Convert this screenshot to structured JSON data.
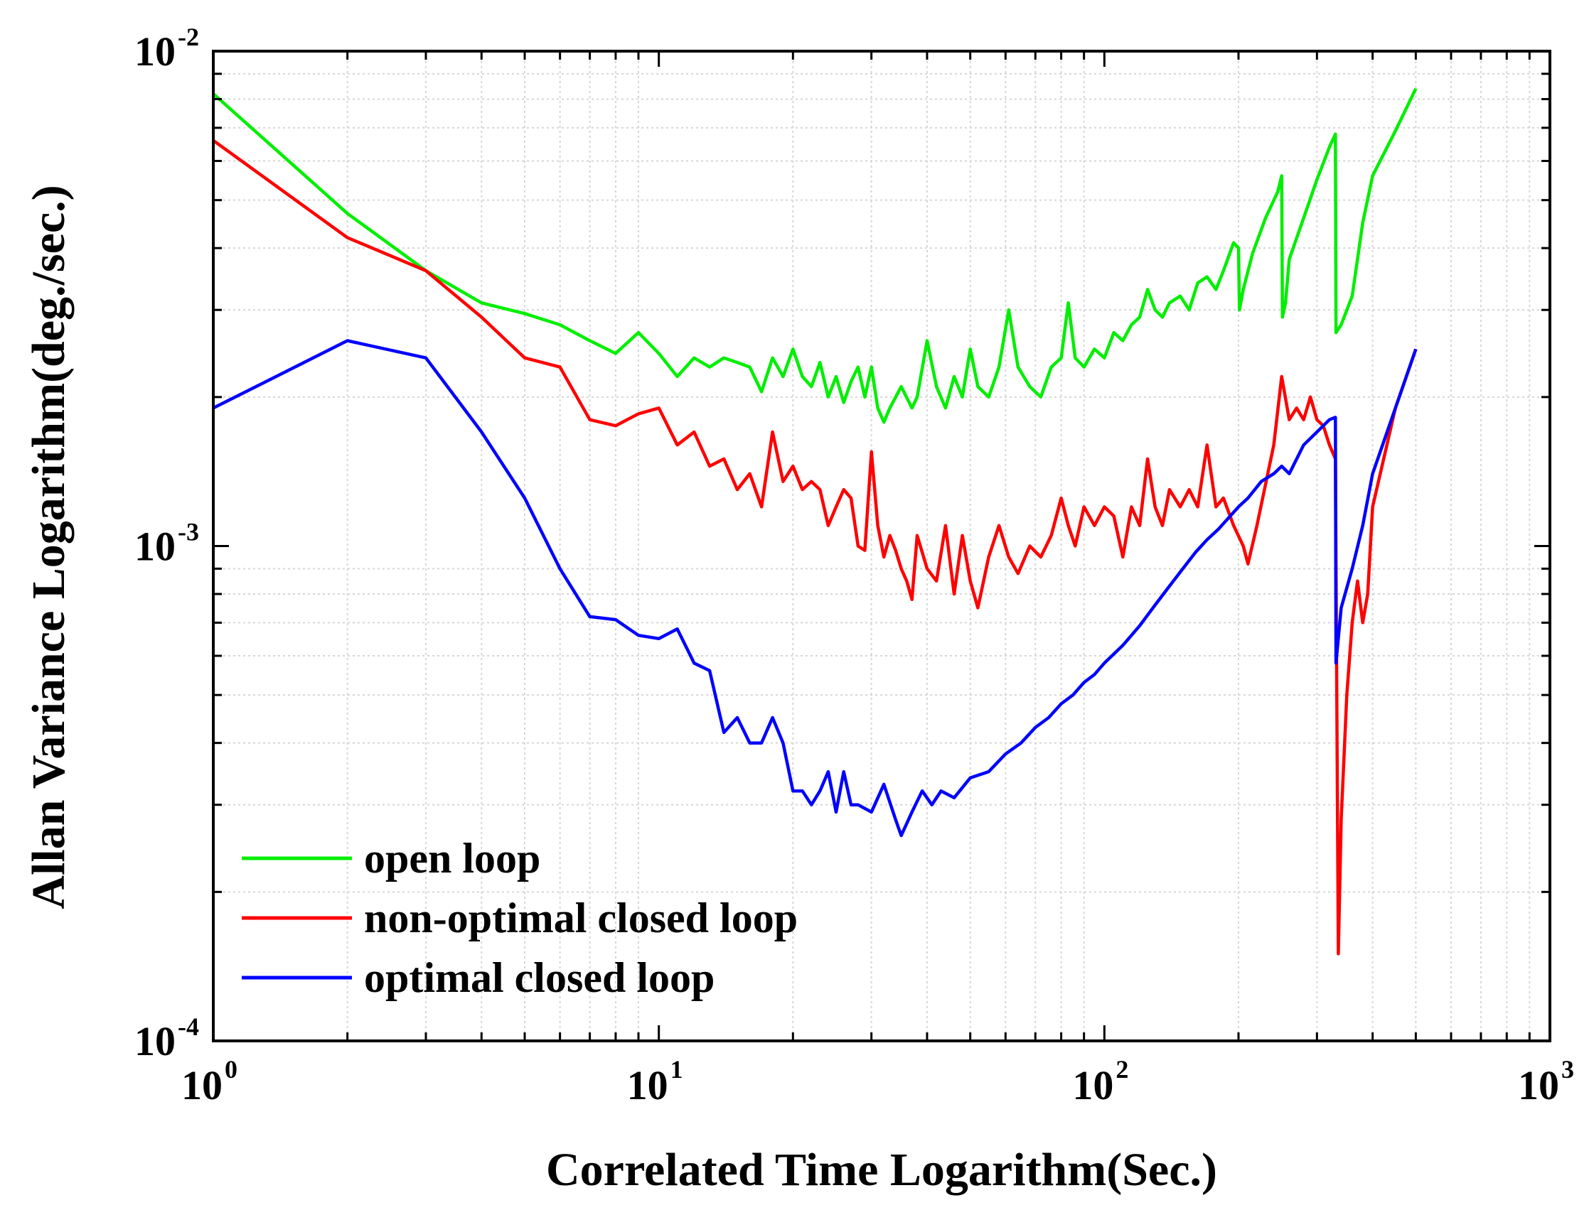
{
  "chart_data": {
    "type": "line",
    "title": "",
    "xlabel": "Correlated Time Logarithm(Sec.)",
    "ylabel": "Allan Variance Logarithm(deg./sec.)",
    "xscale": "log",
    "yscale": "log",
    "xlim": [
      1,
      1000
    ],
    "ylim": [
      0.0001,
      0.01
    ],
    "grid": true,
    "legend_position": "bottom-left",
    "x_ticks": [
      {
        "base": "10",
        "exp": "0",
        "value": 1
      },
      {
        "base": "10",
        "exp": "1",
        "value": 10
      },
      {
        "base": "10",
        "exp": "2",
        "value": 100
      },
      {
        "base": "10",
        "exp": "3",
        "value": 1000
      }
    ],
    "y_ticks": [
      {
        "base": "10",
        "exp": "-4",
        "value": 0.0001
      },
      {
        "base": "10",
        "exp": "-3",
        "value": 0.001
      },
      {
        "base": "10",
        "exp": "-2",
        "value": 0.01
      }
    ],
    "series": [
      {
        "name": "open loop",
        "color": "#00ee00",
        "points": [
          [
            1,
            0.0082
          ],
          [
            2,
            0.0047
          ],
          [
            3,
            0.0036
          ],
          [
            4,
            0.0031
          ],
          [
            5,
            0.00295
          ],
          [
            6,
            0.0028
          ],
          [
            7,
            0.0026
          ],
          [
            8,
            0.00245
          ],
          [
            9,
            0.0027
          ],
          [
            10,
            0.00245
          ],
          [
            11,
            0.0022
          ],
          [
            12,
            0.0024
          ],
          [
            13,
            0.0023
          ],
          [
            14,
            0.0024
          ],
          [
            15,
            0.00235
          ],
          [
            16,
            0.0023
          ],
          [
            17,
            0.00205
          ],
          [
            18,
            0.0024
          ],
          [
            19,
            0.0022
          ],
          [
            20,
            0.0025
          ],
          [
            21,
            0.0022
          ],
          [
            22,
            0.0021
          ],
          [
            23,
            0.00235
          ],
          [
            24,
            0.002
          ],
          [
            25,
            0.0022
          ],
          [
            26,
            0.00195
          ],
          [
            27,
            0.00215
          ],
          [
            28,
            0.0023
          ],
          [
            29,
            0.002
          ],
          [
            30,
            0.0023
          ],
          [
            31,
            0.0019
          ],
          [
            32,
            0.00178
          ],
          [
            33,
            0.0019
          ],
          [
            35,
            0.0021
          ],
          [
            37,
            0.0019
          ],
          [
            38,
            0.002
          ],
          [
            40,
            0.0026
          ],
          [
            42,
            0.0021
          ],
          [
            44,
            0.0019
          ],
          [
            46,
            0.0022
          ],
          [
            48,
            0.002
          ],
          [
            50,
            0.0025
          ],
          [
            52,
            0.0021
          ],
          [
            55,
            0.002
          ],
          [
            58,
            0.0023
          ],
          [
            61,
            0.003
          ],
          [
            64,
            0.0023
          ],
          [
            68,
            0.0021
          ],
          [
            72,
            0.002
          ],
          [
            76,
            0.0023
          ],
          [
            80,
            0.0024
          ],
          [
            83,
            0.0031
          ],
          [
            86,
            0.0024
          ],
          [
            90,
            0.0023
          ],
          [
            95,
            0.0025
          ],
          [
            100,
            0.0024
          ],
          [
            105,
            0.0027
          ],
          [
            110,
            0.0026
          ],
          [
            115,
            0.0028
          ],
          [
            120,
            0.0029
          ],
          [
            125,
            0.0033
          ],
          [
            130,
            0.003
          ],
          [
            135,
            0.0029
          ],
          [
            140,
            0.0031
          ],
          [
            148,
            0.0032
          ],
          [
            155,
            0.003
          ],
          [
            162,
            0.0034
          ],
          [
            170,
            0.0035
          ],
          [
            178,
            0.0033
          ],
          [
            185,
            0.0036
          ],
          [
            195,
            0.0041
          ],
          [
            200,
            0.004
          ],
          [
            201,
            0.003
          ],
          [
            205,
            0.0033
          ],
          [
            215,
            0.0039
          ],
          [
            230,
            0.0046
          ],
          [
            245,
            0.0052
          ],
          [
            250,
            0.0056
          ],
          [
            251,
            0.0029
          ],
          [
            255,
            0.0031
          ],
          [
            260,
            0.0038
          ],
          [
            280,
            0.0046
          ],
          [
            300,
            0.0055
          ],
          [
            320,
            0.0064
          ],
          [
            330,
            0.0068
          ],
          [
            331,
            0.0027
          ],
          [
            340,
            0.0028
          ],
          [
            360,
            0.0032
          ],
          [
            380,
            0.0045
          ],
          [
            400,
            0.0056
          ],
          [
            450,
            0.0069
          ],
          [
            500,
            0.0084
          ]
        ]
      },
      {
        "name": "non-optimal closed loop",
        "color": "#ff0000",
        "points": [
          [
            1,
            0.0066
          ],
          [
            2,
            0.0042
          ],
          [
            3,
            0.0036
          ],
          [
            4,
            0.0029
          ],
          [
            5,
            0.0024
          ],
          [
            6,
            0.0023
          ],
          [
            7,
            0.0018
          ],
          [
            8,
            0.00175
          ],
          [
            9,
            0.00185
          ],
          [
            10,
            0.0019
          ],
          [
            11,
            0.0016
          ],
          [
            12,
            0.0017
          ],
          [
            13,
            0.00145
          ],
          [
            14,
            0.0015
          ],
          [
            15,
            0.0013
          ],
          [
            16,
            0.0014
          ],
          [
            17,
            0.0012
          ],
          [
            18,
            0.0017
          ],
          [
            19,
            0.00135
          ],
          [
            20,
            0.00145
          ],
          [
            21,
            0.0013
          ],
          [
            22,
            0.00135
          ],
          [
            23,
            0.0013
          ],
          [
            24,
            0.0011
          ],
          [
            25,
            0.0012
          ],
          [
            26,
            0.0013
          ],
          [
            27,
            0.00125
          ],
          [
            28,
            0.001
          ],
          [
            29,
            0.00098
          ],
          [
            30,
            0.00155
          ],
          [
            31,
            0.0011
          ],
          [
            32,
            0.00095
          ],
          [
            33,
            0.00105
          ],
          [
            34,
            0.00098
          ],
          [
            35,
            0.0009
          ],
          [
            36,
            0.00085
          ],
          [
            37,
            0.00078
          ],
          [
            38,
            0.00105
          ],
          [
            40,
            0.0009
          ],
          [
            42,
            0.00085
          ],
          [
            44,
            0.0011
          ],
          [
            46,
            0.0008
          ],
          [
            48,
            0.00105
          ],
          [
            50,
            0.00085
          ],
          [
            52,
            0.00075
          ],
          [
            55,
            0.00095
          ],
          [
            58,
            0.0011
          ],
          [
            61,
            0.00095
          ],
          [
            64,
            0.00088
          ],
          [
            68,
            0.001
          ],
          [
            72,
            0.00095
          ],
          [
            76,
            0.00105
          ],
          [
            80,
            0.00125
          ],
          [
            83,
            0.0011
          ],
          [
            86,
            0.001
          ],
          [
            90,
            0.0012
          ],
          [
            95,
            0.0011
          ],
          [
            100,
            0.0012
          ],
          [
            105,
            0.00115
          ],
          [
            110,
            0.00095
          ],
          [
            115,
            0.0012
          ],
          [
            120,
            0.0011
          ],
          [
            125,
            0.0015
          ],
          [
            130,
            0.0012
          ],
          [
            135,
            0.0011
          ],
          [
            140,
            0.0013
          ],
          [
            148,
            0.0012
          ],
          [
            155,
            0.0013
          ],
          [
            162,
            0.0012
          ],
          [
            170,
            0.0016
          ],
          [
            178,
            0.0012
          ],
          [
            185,
            0.00125
          ],
          [
            195,
            0.0011
          ],
          [
            205,
            0.001
          ],
          [
            210,
            0.00092
          ],
          [
            220,
            0.0011
          ],
          [
            240,
            0.0016
          ],
          [
            250,
            0.0022
          ],
          [
            260,
            0.0018
          ],
          [
            270,
            0.0019
          ],
          [
            280,
            0.0018
          ],
          [
            290,
            0.002
          ],
          [
            300,
            0.0018
          ],
          [
            310,
            0.00175
          ],
          [
            320,
            0.0016
          ],
          [
            330,
            0.0015
          ],
          [
            332,
            0.0006
          ],
          [
            335,
            0.00015
          ],
          [
            340,
            0.00028
          ],
          [
            350,
            0.0005
          ],
          [
            360,
            0.0007
          ],
          [
            370,
            0.00085
          ],
          [
            380,
            0.0007
          ],
          [
            390,
            0.0008
          ],
          [
            400,
            0.0012
          ],
          [
            450,
            0.0019
          ],
          [
            500,
            0.0025
          ]
        ]
      },
      {
        "name": "optimal closed loop",
        "color": "#0000ff",
        "points": [
          [
            1,
            0.0019
          ],
          [
            2,
            0.0026
          ],
          [
            3,
            0.0024
          ],
          [
            4,
            0.0017
          ],
          [
            5,
            0.00125
          ],
          [
            6,
            0.0009
          ],
          [
            7,
            0.00072
          ],
          [
            8,
            0.00071
          ],
          [
            9,
            0.00066
          ],
          [
            10,
            0.00065
          ],
          [
            11,
            0.00068
          ],
          [
            12,
            0.00058
          ],
          [
            13,
            0.00056
          ],
          [
            14,
            0.00042
          ],
          [
            15,
            0.00045
          ],
          [
            16,
            0.0004
          ],
          [
            17,
            0.0004
          ],
          [
            18,
            0.00045
          ],
          [
            19,
            0.0004
          ],
          [
            20,
            0.00032
          ],
          [
            21,
            0.00032
          ],
          [
            22,
            0.0003
          ],
          [
            23,
            0.00032
          ],
          [
            24,
            0.00035
          ],
          [
            25,
            0.00029
          ],
          [
            26,
            0.00035
          ],
          [
            27,
            0.0003
          ],
          [
            28,
            0.0003
          ],
          [
            30,
            0.00029
          ],
          [
            32,
            0.00033
          ],
          [
            34,
            0.00028
          ],
          [
            35,
            0.00026
          ],
          [
            37,
            0.00029
          ],
          [
            39,
            0.00032
          ],
          [
            41,
            0.0003
          ],
          [
            43,
            0.00032
          ],
          [
            46,
            0.00031
          ],
          [
            50,
            0.00034
          ],
          [
            55,
            0.00035
          ],
          [
            60,
            0.00038
          ],
          [
            65,
            0.0004
          ],
          [
            70,
            0.00043
          ],
          [
            75,
            0.00045
          ],
          [
            80,
            0.00048
          ],
          [
            85,
            0.0005
          ],
          [
            90,
            0.00053
          ],
          [
            95,
            0.00055
          ],
          [
            100,
            0.00058
          ],
          [
            110,
            0.00063
          ],
          [
            120,
            0.00069
          ],
          [
            130,
            0.00076
          ],
          [
            140,
            0.00083
          ],
          [
            150,
            0.0009
          ],
          [
            160,
            0.00097
          ],
          [
            170,
            0.00103
          ],
          [
            180,
            0.00108
          ],
          [
            190,
            0.00114
          ],
          [
            200,
            0.0012
          ],
          [
            210,
            0.00125
          ],
          [
            225,
            0.00135
          ],
          [
            240,
            0.0014
          ],
          [
            250,
            0.00145
          ],
          [
            260,
            0.0014
          ],
          [
            280,
            0.0016
          ],
          [
            300,
            0.0017
          ],
          [
            320,
            0.0018
          ],
          [
            330,
            0.00182
          ],
          [
            331,
            0.00058
          ],
          [
            340,
            0.00075
          ],
          [
            360,
            0.0009
          ],
          [
            380,
            0.0011
          ],
          [
            400,
            0.0014
          ],
          [
            450,
            0.0019
          ],
          [
            500,
            0.0025
          ]
        ]
      }
    ]
  }
}
